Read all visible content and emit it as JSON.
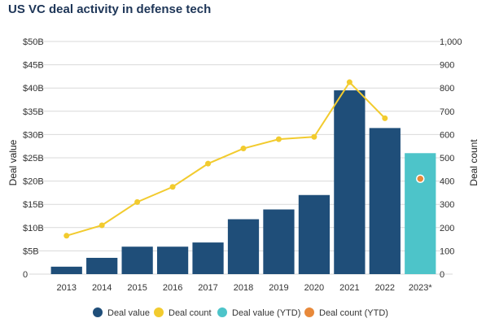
{
  "colors": {
    "deal_value": "#1f4e79",
    "deal_value_ytd": "#4dc4c9",
    "deal_count": "#f2cb2e",
    "deal_count_ytd": "#e8893a",
    "grid": "#d9d9d9",
    "title": "#1d3557"
  },
  "chart_data": {
    "type": "bar",
    "title": "US VC deal activity in defense tech",
    "xlabel": "",
    "ylabel": "Deal value",
    "y2label": "Deal count",
    "categories": [
      "2013",
      "2014",
      "2015",
      "2016",
      "2017",
      "2018",
      "2019",
      "2020",
      "2021",
      "2022",
      "2023*"
    ],
    "ylim": [
      0,
      50
    ],
    "y2lim": [
      0,
      1000
    ],
    "yticks": [
      "0",
      "$5B",
      "$10B",
      "$15B",
      "$20B",
      "$25B",
      "$30B",
      "$35B",
      "$40B",
      "$45B",
      "$50B"
    ],
    "y2ticks": [
      "0",
      "100",
      "200",
      "300",
      "400",
      "500",
      "600",
      "700",
      "800",
      "900",
      "1,000"
    ],
    "grid": true,
    "legend_position": "bottom",
    "series": [
      {
        "name": "Deal value",
        "kind": "bar",
        "axis": "left",
        "values": [
          1.6,
          3.5,
          5.9,
          5.9,
          6.8,
          11.8,
          13.9,
          17.0,
          39.5,
          31.4,
          null
        ]
      },
      {
        "name": "Deal count",
        "kind": "line",
        "axis": "right",
        "values": [
          165,
          210,
          310,
          375,
          475,
          540,
          580,
          590,
          825,
          670,
          null
        ]
      },
      {
        "name": "Deal value (YTD)",
        "kind": "bar",
        "axis": "left",
        "values": [
          null,
          null,
          null,
          null,
          null,
          null,
          null,
          null,
          null,
          null,
          26.0
        ]
      },
      {
        "name": "Deal count (YTD)",
        "kind": "point",
        "axis": "right",
        "values": [
          null,
          null,
          null,
          null,
          null,
          null,
          null,
          null,
          null,
          null,
          410
        ]
      }
    ]
  }
}
